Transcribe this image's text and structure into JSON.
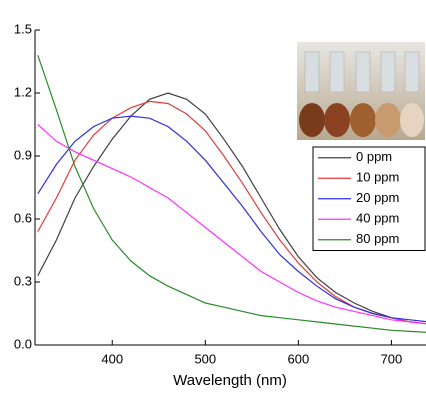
{
  "chart_data": {
    "type": "line",
    "x_label": "Wavelength (nm)",
    "x": [
      320,
      340,
      360,
      380,
      400,
      420,
      440,
      460,
      480,
      500,
      520,
      540,
      560,
      580,
      600,
      620,
      640,
      660,
      680,
      700,
      720,
      740
    ],
    "series": [
      {
        "name": "0 ppm",
        "color": "#404040",
        "values": [
          0.33,
          0.5,
          0.7,
          0.85,
          0.98,
          1.09,
          1.17,
          1.2,
          1.17,
          1.1,
          0.98,
          0.85,
          0.7,
          0.55,
          0.42,
          0.32,
          0.25,
          0.2,
          0.16,
          0.13,
          0.11,
          0.1
        ]
      },
      {
        "name": "10 ppm",
        "color": "#e03c3c",
        "values": [
          0.54,
          0.7,
          0.88,
          1.0,
          1.08,
          1.13,
          1.16,
          1.15,
          1.1,
          1.02,
          0.9,
          0.77,
          0.63,
          0.5,
          0.39,
          0.3,
          0.23,
          0.18,
          0.15,
          0.13,
          0.11,
          0.1
        ]
      },
      {
        "name": "20 ppm",
        "color": "#3030e0",
        "values": [
          0.72,
          0.86,
          0.97,
          1.04,
          1.08,
          1.09,
          1.08,
          1.04,
          0.97,
          0.88,
          0.77,
          0.66,
          0.54,
          0.43,
          0.35,
          0.28,
          0.22,
          0.18,
          0.15,
          0.13,
          0.12,
          0.11
        ]
      },
      {
        "name": "40 ppm",
        "color": "#ff30ff",
        "values": [
          1.05,
          0.97,
          0.92,
          0.88,
          0.84,
          0.8,
          0.75,
          0.7,
          0.63,
          0.56,
          0.49,
          0.42,
          0.35,
          0.3,
          0.25,
          0.21,
          0.18,
          0.16,
          0.14,
          0.12,
          0.11,
          0.1
        ]
      },
      {
        "name": "80 ppm",
        "color": "#2a8a2a",
        "values": [
          1.38,
          1.12,
          0.85,
          0.65,
          0.5,
          0.4,
          0.33,
          0.28,
          0.24,
          0.2,
          0.18,
          0.16,
          0.14,
          0.13,
          0.12,
          0.11,
          0.1,
          0.09,
          0.08,
          0.07,
          0.065,
          0.06
        ]
      }
    ],
    "xlim": [
      317,
      735
    ],
    "xticks": [
      400,
      500,
      600,
      700
    ],
    "ylim": [
      0,
      1.5
    ],
    "yticks": [
      {
        "value": 0,
        "label": "0.0"
      },
      0.3,
      0.6,
      0.9,
      1.2,
      1.5
    ],
    "grid": false,
    "legend": "right"
  }
}
